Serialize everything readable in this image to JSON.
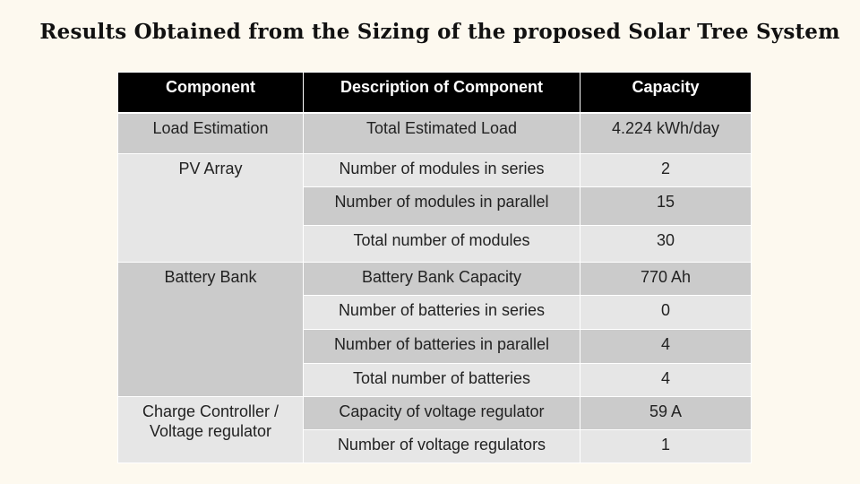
{
  "title": "Results Obtained from the Sizing of the proposed Solar Tree System",
  "table": {
    "headers": [
      "Component",
      "Description of Component",
      "Capacity"
    ],
    "groups": [
      {
        "component": "Load Estimation",
        "rows": [
          {
            "description": "Total Estimated Load",
            "capacity": "4.224 kWh/day"
          }
        ]
      },
      {
        "component": "PV Array",
        "rows": [
          {
            "description": "Number of modules in series",
            "capacity": "2"
          },
          {
            "description": "Number of modules in parallel",
            "capacity": "15"
          },
          {
            "description": "Total number of modules",
            "capacity": "30"
          }
        ]
      },
      {
        "component": "Battery Bank",
        "rows": [
          {
            "description": "Battery Bank Capacity",
            "capacity": "770 Ah"
          },
          {
            "description": "Number of batteries in series",
            "capacity": "0"
          },
          {
            "description": "Number of batteries in parallel",
            "capacity": "4"
          },
          {
            "description": "Total number of batteries",
            "capacity": "4"
          }
        ]
      },
      {
        "component": "Charge Controller / Voltage regulator",
        "rows": [
          {
            "description": "Capacity of voltage regulator",
            "capacity": "59 A"
          },
          {
            "description": "Number of voltage regulators",
            "capacity": "1"
          }
        ]
      }
    ]
  },
  "colors": {
    "background": "#fdf9ef",
    "header_background": "#000000",
    "cell_dark": "#cbcbcb",
    "cell_light": "#e6e6e6"
  }
}
